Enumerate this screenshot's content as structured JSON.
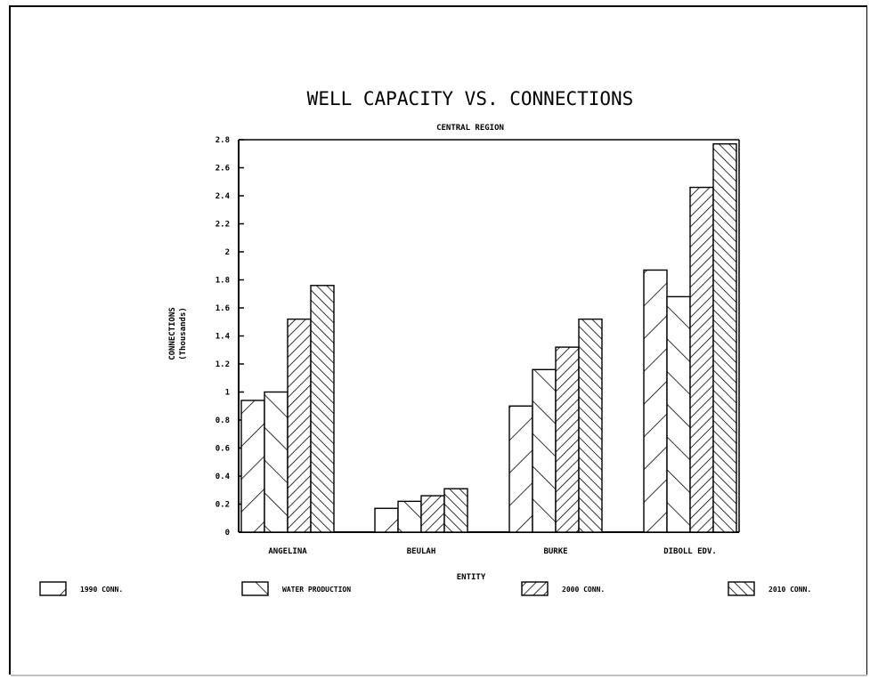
{
  "chart_data": {
    "type": "bar",
    "title": "WELL CAPACITY VS. CONNECTIONS",
    "subtitle": "CENTRAL REGION",
    "xlabel": "ENTITY",
    "ylabel": "CONNECTIONS",
    "ylabel_sub": "(Thousands)",
    "ylim": [
      0,
      2.8
    ],
    "yticks": [
      "0",
      "0.2",
      "0.4",
      "0.6",
      "0.8",
      "1",
      "1.2",
      "1.4",
      "1.6",
      "1.8",
      "2",
      "2.2",
      "2.4",
      "2.6",
      "2.8"
    ],
    "categories": [
      "ANGELINA",
      "BEULAH",
      "BURKE",
      "DIBOLL EDV."
    ],
    "series": [
      {
        "name": "1990 CONN.",
        "values": [
          0.94,
          0.17,
          0.9,
          1.87
        ],
        "pattern": "diag-right-wide"
      },
      {
        "name": "WATER PRODUCTION",
        "values": [
          1.0,
          0.22,
          1.16,
          1.68
        ],
        "pattern": "diag-left-wide"
      },
      {
        "name": "2000 CONN.",
        "values": [
          1.52,
          0.26,
          1.32,
          2.46
        ],
        "pattern": "diag-right-dense"
      },
      {
        "name": "2010 CONN.",
        "values": [
          1.76,
          0.31,
          1.52,
          2.77
        ],
        "pattern": "diag-left-dense"
      }
    ],
    "grid": false,
    "legend_position": "bottom"
  }
}
